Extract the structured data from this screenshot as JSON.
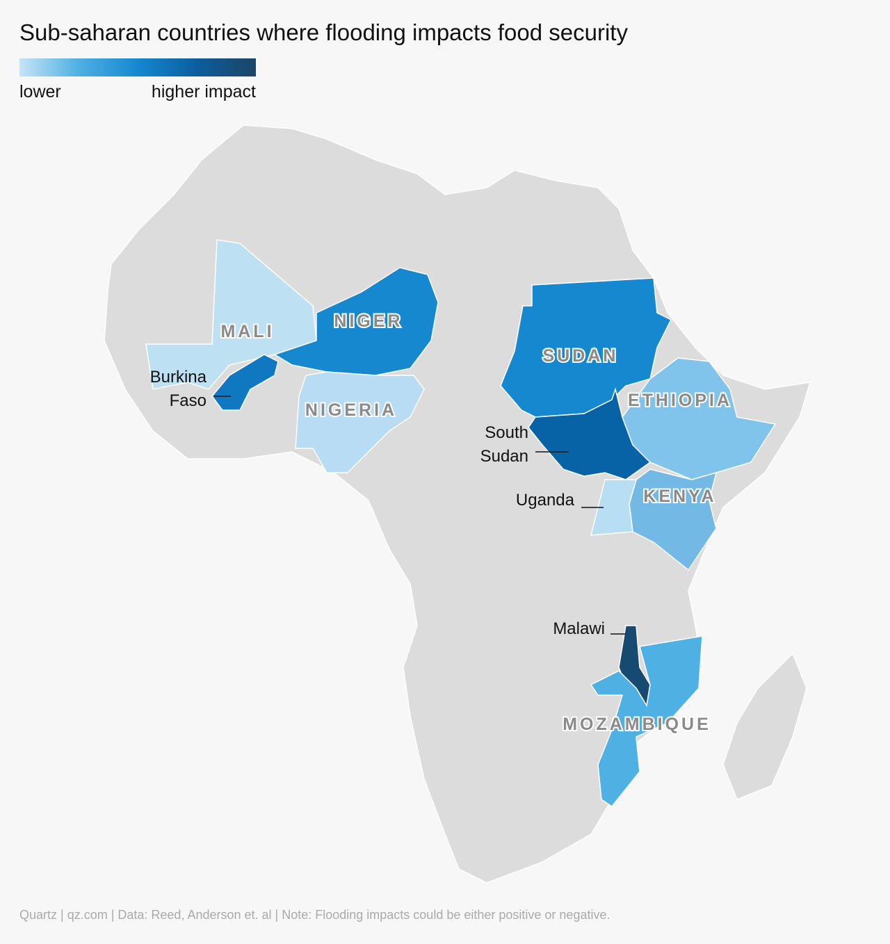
{
  "header": {
    "title": "Sub-saharan countries where flooding impacts food security"
  },
  "legend": {
    "low_label": "lower",
    "high_label": "higher impact",
    "colors": [
      "#c6e4f5",
      "#4fb0e3",
      "#1588d0",
      "#0b5e9e",
      "#1c4566"
    ]
  },
  "map": {
    "land_color": "#dcdcdc",
    "border_color": "#ffffff",
    "countries": [
      {
        "lines": [
          "MALI"
        ],
        "color": "#bde0f3"
      },
      {
        "lines": [
          "NIGER"
        ],
        "color": "#1588d0"
      },
      {
        "lines": [
          "Burkina",
          "Faso"
        ],
        "color": "#0f78c0"
      },
      {
        "lines": [
          "NIGERIA"
        ],
        "color": "#b7dcf3"
      },
      {
        "lines": [
          "SUDAN"
        ],
        "color": "#1688d0"
      },
      {
        "lines": [
          "South",
          "Sudan"
        ],
        "color": "#0762a6"
      },
      {
        "lines": [
          "ETHIOPIA"
        ],
        "color": "#80c3eb"
      },
      {
        "lines": [
          "KENYA"
        ],
        "color": "#72b9e6"
      },
      {
        "lines": [
          "Uganda"
        ],
        "color": "#b8def4"
      },
      {
        "lines": [
          "Malawi"
        ],
        "color": "#164a70"
      },
      {
        "lines": [
          "MOZAMBIQUE"
        ],
        "color": "#4fb0e3"
      }
    ]
  },
  "footer": {
    "source": "Quartz | qz.com | Data: Reed, Anderson et. al | Note: Flooding impacts could be either positive or negative."
  }
}
